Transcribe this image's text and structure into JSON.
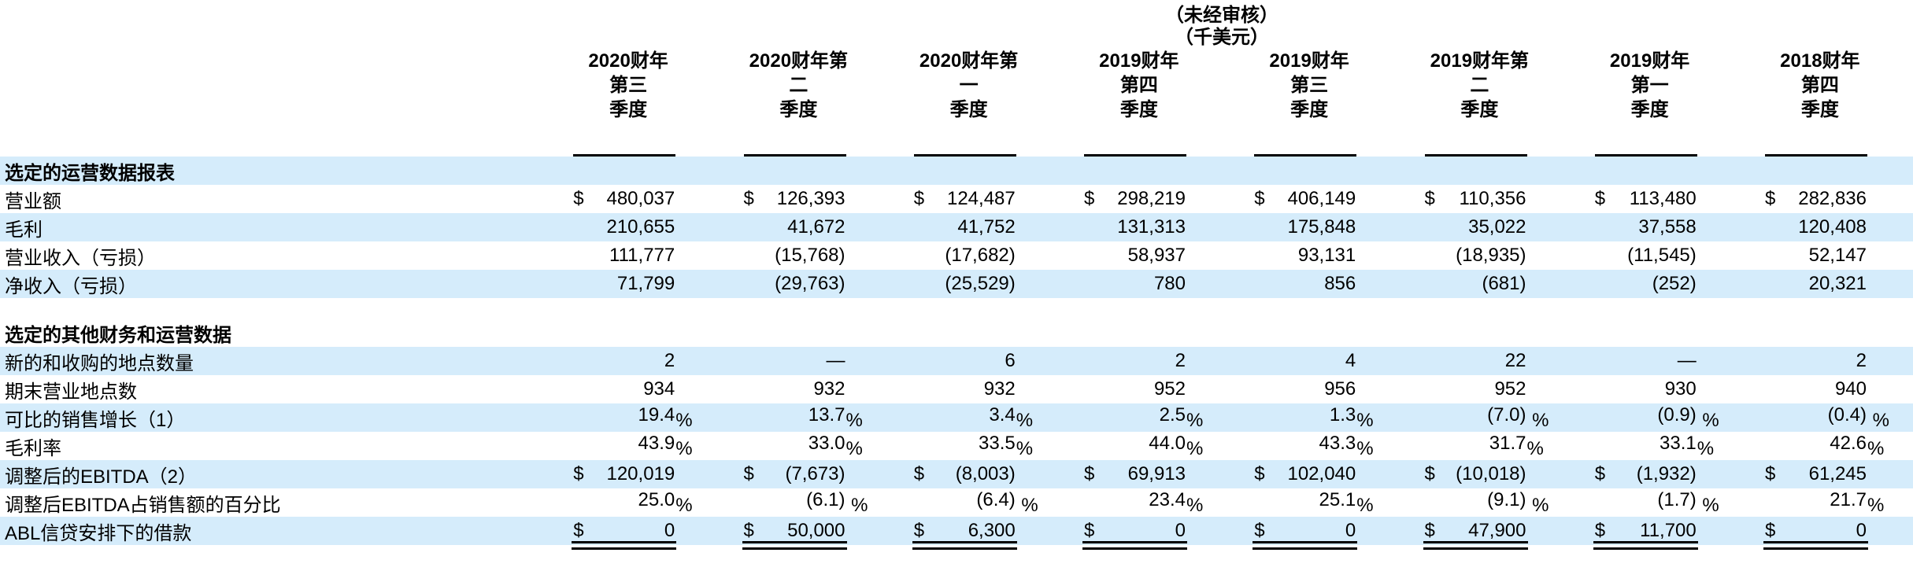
{
  "meta": {
    "note_line1": "（未经审核）",
    "note_line2": "（千美元）"
  },
  "colors": {
    "band": "#d5ecfb",
    "rule": "#000000"
  },
  "columns": [
    {
      "lines": [
        "2020财年",
        "第三",
        "季度"
      ]
    },
    {
      "lines": [
        "2020财年第",
        "二",
        "季度"
      ]
    },
    {
      "lines": [
        "2020财年第",
        "一",
        "季度"
      ]
    },
    {
      "lines": [
        "2019财年",
        "第四",
        "季度"
      ]
    },
    {
      "lines": [
        "2019财年",
        "第三",
        "季度"
      ]
    },
    {
      "lines": [
        "2019财年第",
        "二",
        "季度"
      ]
    },
    {
      "lines": [
        "2019财年",
        "第一",
        "季度"
      ]
    },
    {
      "lines": [
        "2018财年",
        "第四",
        "季度"
      ]
    }
  ],
  "sections": [
    {
      "header": "选定的运营数据报表",
      "header_shaded": true,
      "gap_before": false,
      "rows": [
        {
          "label": "营业额",
          "shaded": false,
          "cells": [
            {
              "p": "$",
              "v": "480,037"
            },
            {
              "p": "$",
              "v": "126,393"
            },
            {
              "p": "$",
              "v": "124,487"
            },
            {
              "p": "$",
              "v": "298,219"
            },
            {
              "p": "$",
              "v": "406,149"
            },
            {
              "p": "$",
              "v": "110,356"
            },
            {
              "p": "$",
              "v": "113,480"
            },
            {
              "p": "$",
              "v": "282,836"
            }
          ]
        },
        {
          "label": "毛利",
          "shaded": true,
          "cells": [
            {
              "v": "210,655"
            },
            {
              "v": "41,672"
            },
            {
              "v": "41,752"
            },
            {
              "v": "131,313"
            },
            {
              "v": "175,848"
            },
            {
              "v": "35,022"
            },
            {
              "v": "37,558"
            },
            {
              "v": "120,408"
            }
          ]
        },
        {
          "label": "营业收入（亏损）",
          "shaded": false,
          "cells": [
            {
              "v": "111,777"
            },
            {
              "v": "(15,768)"
            },
            {
              "v": "(17,682)"
            },
            {
              "v": "58,937"
            },
            {
              "v": "93,131"
            },
            {
              "v": "(18,935)"
            },
            {
              "v": "(11,545)"
            },
            {
              "v": "52,147"
            }
          ]
        },
        {
          "label": "净收入（亏损）",
          "shaded": true,
          "cells": [
            {
              "v": "71,799"
            },
            {
              "v": "(29,763)"
            },
            {
              "v": "(25,529)"
            },
            {
              "v": "780"
            },
            {
              "v": "856"
            },
            {
              "v": "(681)"
            },
            {
              "v": "(252)"
            },
            {
              "v": "20,321"
            }
          ]
        }
      ]
    },
    {
      "header": "选定的其他财务和运营数据",
      "header_shaded": false,
      "gap_before": true,
      "rows": [
        {
          "label": "新的和收购的地点数量",
          "shaded": true,
          "cells": [
            {
              "v": "2"
            },
            {
              "v": "—"
            },
            {
              "v": "6"
            },
            {
              "v": "2"
            },
            {
              "v": "4"
            },
            {
              "v": "22"
            },
            {
              "v": "—"
            },
            {
              "v": "2"
            }
          ]
        },
        {
          "label": "期末营业地点数",
          "shaded": false,
          "cells": [
            {
              "v": "934"
            },
            {
              "v": "932"
            },
            {
              "v": "932"
            },
            {
              "v": "952"
            },
            {
              "v": "956"
            },
            {
              "v": "952"
            },
            {
              "v": "930"
            },
            {
              "v": "940"
            }
          ]
        },
        {
          "label": "可比的销售增长（1）",
          "shaded": true,
          "cells": [
            {
              "v": "19.4",
              "s": "%"
            },
            {
              "v": "13.7",
              "s": "%"
            },
            {
              "v": "3.4",
              "s": "%"
            },
            {
              "v": "2.5",
              "s": "%"
            },
            {
              "v": "1.3",
              "s": "%"
            },
            {
              "v": "(7.0)",
              "s": " %"
            },
            {
              "v": "(0.9)",
              "s": " %"
            },
            {
              "v": "(0.4)",
              "s": " %"
            }
          ]
        },
        {
          "label": "毛利率",
          "shaded": false,
          "cells": [
            {
              "v": "43.9",
              "s": "%"
            },
            {
              "v": "33.0",
              "s": "%"
            },
            {
              "v": "33.5",
              "s": "%"
            },
            {
              "v": "44.0",
              "s": "%"
            },
            {
              "v": "43.3",
              "s": "%"
            },
            {
              "v": "31.7",
              "s": "%"
            },
            {
              "v": "33.1",
              "s": "%"
            },
            {
              "v": "42.6",
              "s": "%"
            }
          ]
        },
        {
          "label": "调整后的EBITDA（2）",
          "shaded": true,
          "cells": [
            {
              "p": "$",
              "v": "120,019"
            },
            {
              "p": "$",
              "v": "(7,673)"
            },
            {
              "p": "$",
              "v": "(8,003)"
            },
            {
              "p": "$",
              "v": "69,913"
            },
            {
              "p": "$",
              "v": "102,040"
            },
            {
              "p": "$",
              "v": "(10,018)"
            },
            {
              "p": "$",
              "v": "(1,932)"
            },
            {
              "p": "$",
              "v": "61,245"
            }
          ]
        },
        {
          "label": "调整后EBITDA占销售额的百分比",
          "shaded": false,
          "cells": [
            {
              "v": "25.0",
              "s": "%"
            },
            {
              "v": "(6.1)",
              "s": " %"
            },
            {
              "v": "(6.4)",
              "s": " %"
            },
            {
              "v": "23.4",
              "s": "%"
            },
            {
              "v": "25.1",
              "s": "%"
            },
            {
              "v": "(9.1)",
              "s": " %"
            },
            {
              "v": "(1.7)",
              "s": " %"
            },
            {
              "v": "21.7",
              "s": "%"
            }
          ]
        },
        {
          "label": "ABL信贷安排下的借款",
          "shaded": true,
          "double_rule": true,
          "cells": [
            {
              "p": "$",
              "v": "0"
            },
            {
              "p": "$",
              "v": "50,000"
            },
            {
              "p": "$",
              "v": "6,300"
            },
            {
              "p": "$",
              "v": "0"
            },
            {
              "p": "$",
              "v": "0"
            },
            {
              "p": "$",
              "v": "47,900"
            },
            {
              "p": "$",
              "v": "11,700"
            },
            {
              "p": "$",
              "v": "0"
            }
          ]
        }
      ]
    }
  ]
}
